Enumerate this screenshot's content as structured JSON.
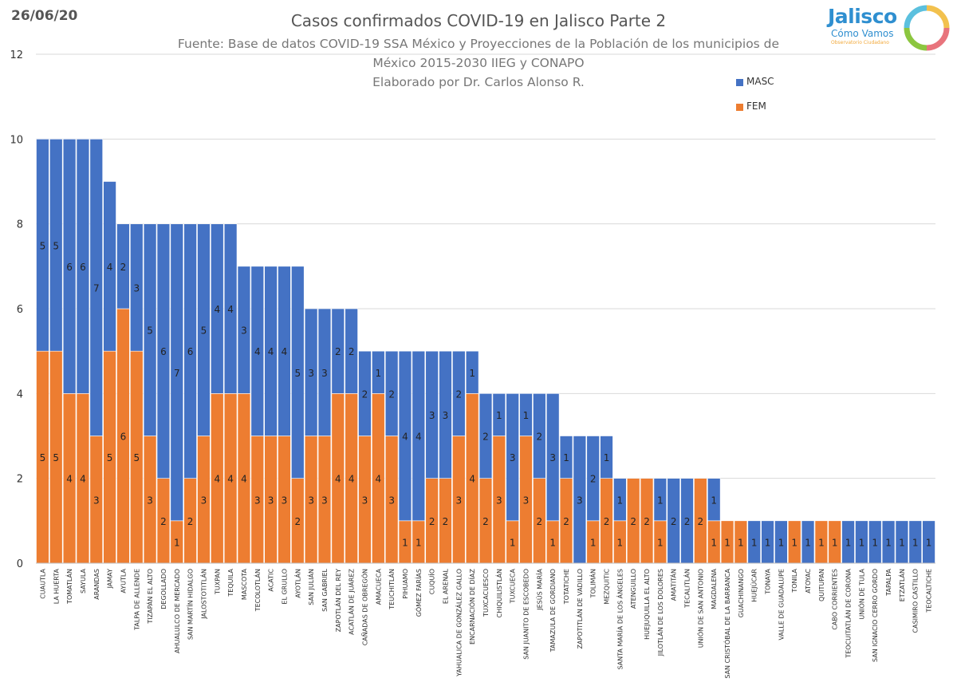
{
  "header": {
    "date": "26/06/20",
    "logo_main": "Jalisco",
    "logo_sub": "Cómo Vamos",
    "logo_tag": "Observatorio Ciudadano"
  },
  "colors": {
    "masc": "#4472c4",
    "fem": "#ed7d31",
    "grid": "#d9d9d9",
    "axis_text": "#333333"
  },
  "chart_data": {
    "type": "bar",
    "stacked": true,
    "title": "Casos confirmados COVID-19 en Jalisco Parte 2",
    "subtitle_lines": [
      "Fuente: Base de datos COVID-19 SSA México y Proyecciones de la Población de los municipios de",
      "México 2015-2030 IIEG y CONAPO",
      "Elaborado por Dr. Carlos Alonso R."
    ],
    "ylim": [
      0,
      12
    ],
    "yticks": [
      0,
      2,
      4,
      6,
      8,
      10,
      12
    ],
    "grid": true,
    "legend_position": "top-right",
    "categories": [
      "CUAUTLA",
      "LA HUERTA",
      "TOMATLÁN",
      "SAYULA",
      "ARANDAS",
      "JAMAY",
      "AYUTLA",
      "TALPA DE ALLENDE",
      "TIZAPÁN EL ALTO",
      "DEGOLLADO",
      "AHUALULCO DE MERCADO",
      "SAN MARTÍN HIDALGO",
      "JALOSTOTITLÁN",
      "TUXPAN",
      "TEQUILA",
      "MASCOTA",
      "TECOLOTLÁN",
      "ACATIC",
      "EL GRULLO",
      "AYOTLÁN",
      "SAN JULIÁN",
      "SAN GABRIEL",
      "ZAPOTLÁN DEL REY",
      "ACATLÁN DE JUÁREZ",
      "CAÑADAS DE OBREGÓN",
      "AMACUECA",
      "TEUCHITLÁN",
      "PIHUAMO",
      "GÓMEZ FARÍAS",
      "CUQUÍO",
      "EL ARENAL",
      "YAHUALICA DE GONZÁLEZ GALLO",
      "ENCARNACIÓN DE DÍAZ",
      "TUXCACUESCO",
      "CHIQUILISTLÁN",
      "TUXCUECA",
      "SAN JUANITO DE ESCOBEDO",
      "JESÚS MARÍA",
      "TAMAZULA DE GORDIANO",
      "TOTATICHE",
      "ZAPOTITLÁN DE VADILLO",
      "TOLIMÁN",
      "MEZQUITIC",
      "SANTA MARÍA DE LOS ÁNGELES",
      "ATENGUILLO",
      "HUEJUQUILLA EL ALTO",
      "JILOTLÁN DE LOS DOLORES",
      "AMATITÁN",
      "TECALITLÁN",
      "UNIÓN DE SAN ANTONIO",
      "MAGDALENA",
      "SAN CRISTÓBAL DE LA BARRANCA",
      "GUACHINANGO",
      "HUEJÚCAR",
      "TONAYA",
      "VALLE DE GUADALUPE",
      "TONILA",
      "ATOYAC",
      "QUITUPAN",
      "CABO CORRIENTES",
      "TEOCUITATLÁN DE CORONA",
      "UNIÓN DE TULA",
      "SAN IGNACIO CERRO GORDO",
      "TAPALPA",
      "ETZATLÁN",
      "CASIMIRO CASTILLO",
      "TEOCALTICHE"
    ],
    "series": [
      {
        "name": "FEM",
        "color": "#ed7d31",
        "values": [
          5,
          5,
          4,
          4,
          3,
          5,
          6,
          5,
          3,
          2,
          1,
          2,
          3,
          4,
          4,
          4,
          3,
          3,
          3,
          2,
          3,
          3,
          4,
          4,
          3,
          4,
          3,
          1,
          1,
          2,
          2,
          3,
          4,
          2,
          3,
          1,
          3,
          2,
          1,
          2,
          0,
          1,
          2,
          1,
          2,
          2,
          1,
          0,
          0,
          2,
          1,
          1,
          1,
          0,
          0,
          0,
          1,
          0,
          1,
          1,
          0,
          0,
          0,
          0,
          0,
          0,
          0
        ],
        "labels": [
          "5",
          "5",
          "4",
          "4",
          "3",
          "5",
          "6",
          "5",
          "3",
          "2",
          "1",
          "2",
          "3",
          "4",
          "4",
          "4",
          "3",
          "3",
          "3",
          "2",
          "3",
          "3",
          "4",
          "4",
          "3",
          "4",
          "3",
          "1",
          "1",
          "2",
          "2",
          "3",
          "4",
          "2",
          "3",
          "1",
          "3",
          "2",
          "1",
          "2",
          "",
          "1",
          "2",
          "1",
          "2",
          "2",
          "1",
          "",
          "",
          "2",
          "1",
          "1",
          "1",
          "",
          "",
          "",
          "1",
          "",
          "1",
          "1",
          "",
          "",
          "",
          "",
          "",
          "",
          ""
        ]
      },
      {
        "name": "MASC",
        "color": "#4472c4",
        "values": [
          5,
          5,
          6,
          6,
          7,
          4,
          2,
          3,
          5,
          6,
          7,
          6,
          5,
          4,
          4,
          3,
          4,
          4,
          4,
          5,
          3,
          3,
          2,
          2,
          2,
          1,
          2,
          4,
          4,
          3,
          3,
          2,
          1,
          2,
          1,
          3,
          1,
          2,
          3,
          1,
          3,
          2,
          1,
          1,
          0,
          0,
          1,
          2,
          2,
          0,
          1,
          0,
          0,
          1,
          1,
          1,
          0,
          1,
          0,
          0,
          1,
          1,
          1,
          1,
          1,
          1,
          1
        ],
        "labels": [
          "5",
          "5",
          "6",
          "6",
          "7",
          "4",
          "2",
          "3",
          "5",
          "6",
          "7",
          "6",
          "5",
          "4",
          "4",
          "3",
          "4",
          "4",
          "4",
          "5",
          "3",
          "3",
          "2",
          "2",
          "2",
          "1",
          "2",
          "4",
          "4",
          "3",
          "3",
          "2",
          "1",
          "2",
          "1",
          "3",
          "1",
          "2",
          "3",
          "1",
          "3",
          "2",
          "1",
          "1",
          "",
          "",
          "1",
          "2",
          "2",
          "",
          "1",
          "",
          "",
          "1",
          "1",
          "1",
          "",
          "1",
          "",
          "",
          "1",
          "1",
          "1",
          "1",
          "1",
          "1",
          "1"
        ]
      }
    ]
  }
}
